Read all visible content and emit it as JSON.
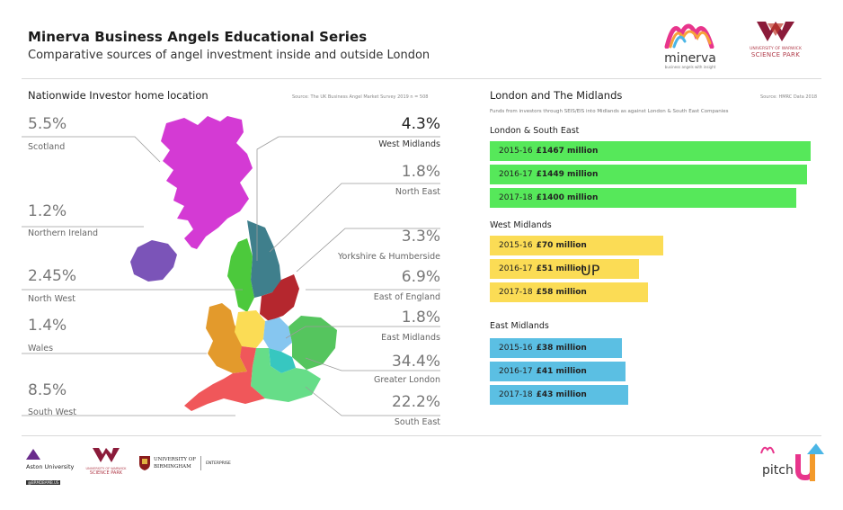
{
  "header": {
    "title": "Minerva Business Angels Educational Series",
    "subtitle": "Comparative sources of angel investment inside and outside London"
  },
  "brands": {
    "minerva_name": "minerva",
    "minerva_tagline": "business angels with insight",
    "warwick_line1": "UNIVERSITY OF WARWICK",
    "warwick_line2": "SCIENCE PARK",
    "aston": "Aston University",
    "aston_handle": "@BRMDBAMB.US",
    "warwick_small1": "UNIVERSITY OF WARWICK",
    "warwick_small2": "SCIENCE PARK",
    "birmingham_line1": "UNIVERSITY OF",
    "birmingham_line2": "BIRMINGHAM",
    "enterprise": "ENTERPRISE",
    "pitch_name": "pitch",
    "pitch_up": "UP"
  },
  "map_section": {
    "title": "Nationwide Investor home location",
    "source": "Source: The UK Business Angel Market Survey 2019 n = 508"
  },
  "midlands_section": {
    "title": "London and The Midlands",
    "source": "Source: HMRC Data 2018",
    "note": "Funds from investors through SEIS/EIS into Midlands as against London & South East Companies"
  },
  "colors": {
    "london": "#56e85a",
    "west": "#fbdc55",
    "east": "#5bbfe3",
    "scotland": "#d43ad4",
    "northern_ireland": "#7b54b8",
    "north_west": "#4cc93c",
    "wales": "#e39a2c",
    "south_west": "#f0575a",
    "west_midlands": "#fbdc55",
    "north_east": "#3f7f8c",
    "yorkshire": "#3f7f8c",
    "east_of_england": "#55c55e",
    "east_midlands": "#86c6f0",
    "greater_london": "#37c7c0",
    "south_east": "#66dd88",
    "yorkshire_red": "#b5272e"
  },
  "chart_data": [
    {
      "type": "map",
      "title": "Nationwide Investor home location",
      "unit": "%",
      "regions": [
        {
          "name": "Scotland",
          "label": "5.5%",
          "value": 5.5
        },
        {
          "name": "Northern Ireland",
          "label": "1.2%",
          "value": 1.2
        },
        {
          "name": "North West",
          "label": "2.45%",
          "value": 2.45
        },
        {
          "name": "Wales",
          "label": "1.4%",
          "value": 1.4
        },
        {
          "name": "South West",
          "label": "8.5%",
          "value": 8.5
        },
        {
          "name": "West Midlands",
          "label": "4.3%",
          "value": 4.3
        },
        {
          "name": "North East",
          "label": "1.8%",
          "value": 1.8
        },
        {
          "name": "Yorkshire & Humberside",
          "label": "3.3%",
          "value": 3.3
        },
        {
          "name": "East of England",
          "label": "6.9%",
          "value": 6.9
        },
        {
          "name": "East Midlands",
          "label": "1.8%",
          "value": 1.8
        },
        {
          "name": "Greater London",
          "label": "34.4%",
          "value": 34.4
        },
        {
          "name": "South East",
          "label": "22.2%",
          "value": 22.2
        }
      ]
    },
    {
      "type": "bar",
      "orientation": "horizontal",
      "title": "London and The Midlands",
      "unit": "million",
      "xlim": [
        0,
        1500
      ],
      "groups": [
        {
          "name": "London & South East",
          "color_key": "london",
          "bars": [
            {
              "year": "2015-16",
              "value": 1467,
              "label": "£1467 million"
            },
            {
              "year": "2016-17",
              "value": 1449,
              "label": "£1449 million"
            },
            {
              "year": "2017-18",
              "value": 1400,
              "label": "£1400 million"
            }
          ]
        },
        {
          "name": "West Midlands",
          "color_key": "west",
          "bars": [
            {
              "year": "2015-16",
              "value": 70,
              "label": "£70 million"
            },
            {
              "year": "2016-17",
              "value": 51,
              "label": "£51 million"
            },
            {
              "year": "2017-18",
              "value": 58,
              "label": "£58 million"
            }
          ]
        },
        {
          "name": "East Midlands",
          "color_key": "east",
          "bars": [
            {
              "year": "2015-16",
              "value": 38,
              "label": "£38 million"
            },
            {
              "year": "2016-17",
              "value": 41,
              "label": "£41 million"
            },
            {
              "year": "2017-18",
              "value": 43,
              "label": "£43 million"
            }
          ]
        }
      ]
    }
  ]
}
